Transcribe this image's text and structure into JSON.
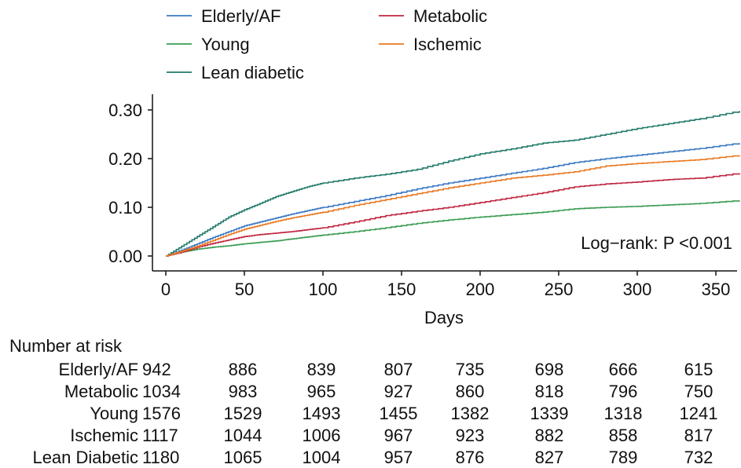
{
  "chart_data": {
    "type": "line",
    "xlabel": "Days",
    "ylabel": "",
    "xlim": [
      0,
      365
    ],
    "ylim": [
      0,
      0.3
    ],
    "xticks": [
      0,
      50,
      100,
      150,
      200,
      250,
      300,
      350
    ],
    "xtick_labels": [
      "0",
      "50",
      "100",
      "150",
      "200",
      "250",
      "300",
      "350"
    ],
    "yticks": [
      0,
      0.1,
      0.2,
      0.3
    ],
    "ytick_labels": [
      "0.00",
      "0.10",
      "0.20",
      "0.30"
    ],
    "grid": false,
    "legend_position": "top-left",
    "annotation": "Log−rank: P <0.001",
    "series": [
      {
        "name": "Elderly/AF",
        "color": "#3a78c2",
        "x": [
          0,
          10,
          20,
          30,
          40,
          50,
          60,
          70,
          80,
          90,
          100,
          120,
          140,
          160,
          180,
          200,
          220,
          240,
          260,
          280,
          300,
          320,
          340,
          365
        ],
        "y": [
          0,
          0.012,
          0.025,
          0.038,
          0.05,
          0.062,
          0.07,
          0.078,
          0.086,
          0.093,
          0.1,
          0.112,
          0.124,
          0.138,
          0.15,
          0.16,
          0.17,
          0.18,
          0.192,
          0.2,
          0.207,
          0.214,
          0.221,
          0.232
        ]
      },
      {
        "name": "Young",
        "color": "#3a9b52",
        "x": [
          0,
          10,
          20,
          30,
          40,
          50,
          60,
          70,
          80,
          90,
          100,
          120,
          140,
          160,
          180,
          200,
          220,
          240,
          260,
          280,
          300,
          320,
          340,
          365
        ],
        "y": [
          0,
          0.008,
          0.014,
          0.018,
          0.021,
          0.025,
          0.028,
          0.031,
          0.035,
          0.039,
          0.043,
          0.05,
          0.058,
          0.067,
          0.074,
          0.08,
          0.085,
          0.09,
          0.097,
          0.1,
          0.102,
          0.105,
          0.108,
          0.114
        ]
      },
      {
        "name": "Lean diabetic",
        "color": "#217a6a",
        "x": [
          0,
          10,
          20,
          30,
          40,
          50,
          60,
          70,
          80,
          90,
          100,
          120,
          140,
          160,
          180,
          200,
          220,
          240,
          260,
          280,
          300,
          320,
          340,
          365
        ],
        "y": [
          0,
          0.02,
          0.04,
          0.06,
          0.08,
          0.095,
          0.108,
          0.122,
          0.132,
          0.142,
          0.15,
          0.16,
          0.168,
          0.178,
          0.195,
          0.21,
          0.22,
          0.232,
          0.238,
          0.25,
          0.262,
          0.272,
          0.282,
          0.298
        ]
      },
      {
        "name": "Metabolic",
        "color": "#c0263f",
        "x": [
          0,
          10,
          20,
          30,
          40,
          50,
          60,
          70,
          80,
          90,
          100,
          120,
          140,
          160,
          180,
          200,
          220,
          240,
          260,
          280,
          300,
          320,
          340,
          365
        ],
        "y": [
          0,
          0.008,
          0.018,
          0.026,
          0.033,
          0.04,
          0.044,
          0.047,
          0.05,
          0.054,
          0.058,
          0.07,
          0.083,
          0.092,
          0.1,
          0.11,
          0.12,
          0.13,
          0.142,
          0.148,
          0.152,
          0.157,
          0.16,
          0.17
        ]
      },
      {
        "name": "Ischemic",
        "color": "#e97a22",
        "x": [
          0,
          10,
          20,
          30,
          40,
          50,
          60,
          70,
          80,
          90,
          100,
          120,
          140,
          160,
          180,
          200,
          220,
          240,
          260,
          280,
          300,
          320,
          340,
          365
        ],
        "y": [
          0,
          0.01,
          0.02,
          0.032,
          0.044,
          0.055,
          0.063,
          0.071,
          0.078,
          0.084,
          0.09,
          0.104,
          0.116,
          0.128,
          0.14,
          0.15,
          0.16,
          0.166,
          0.173,
          0.185,
          0.19,
          0.194,
          0.198,
          0.207
        ]
      }
    ],
    "legend": {
      "columns": [
        [
          "Elderly/AF",
          "Young",
          "Lean diabetic"
        ],
        [
          "Metabolic",
          "Ischemic"
        ]
      ]
    },
    "risk_table": {
      "title": "Number at risk",
      "time_points": [
        0,
        50,
        100,
        150,
        200,
        250,
        300,
        350
      ],
      "rows": [
        {
          "label": "Elderly/AF",
          "values": [
            "942",
            "886",
            "839",
            "807",
            "735",
            "698",
            "666",
            "615"
          ]
        },
        {
          "label": "Metabolic",
          "values": [
            "1034",
            "983",
            "965",
            "927",
            "860",
            "818",
            "796",
            "750"
          ]
        },
        {
          "label": "Young",
          "values": [
            "1576",
            "1529",
            "1493",
            "1455",
            "1382",
            "1339",
            "1318",
            "1241"
          ]
        },
        {
          "label": "Ischemic",
          "values": [
            "1117",
            "1044",
            "1006",
            "967",
            "923",
            "882",
            "858",
            "817"
          ]
        },
        {
          "label": "Lean Diabetic",
          "values": [
            "1180",
            "1065",
            "1004",
            "957",
            "876",
            "827",
            "789",
            "732"
          ]
        }
      ]
    }
  }
}
